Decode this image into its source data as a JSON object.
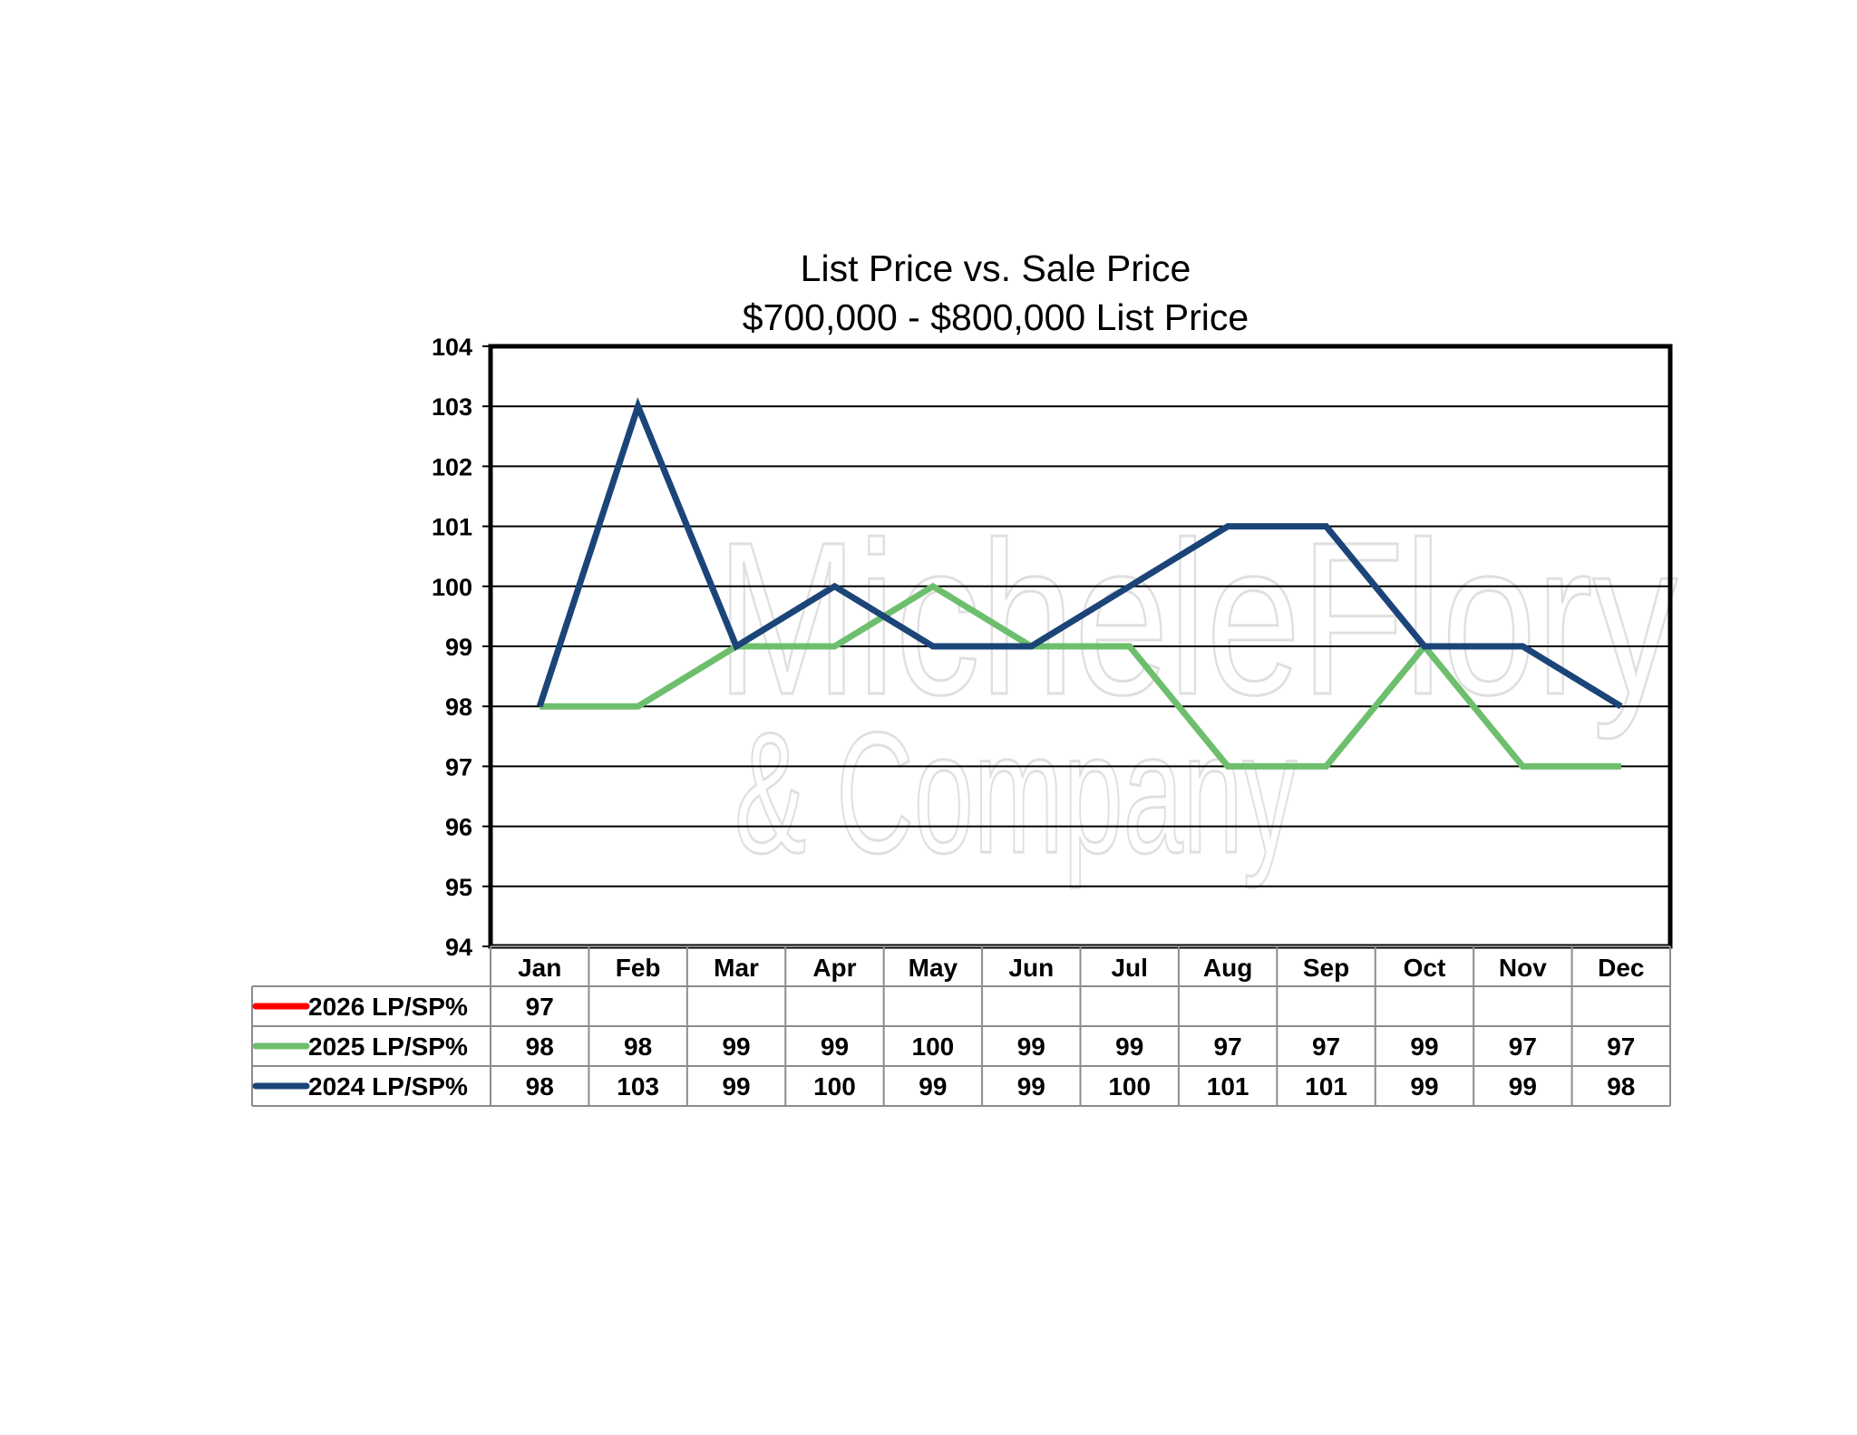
{
  "chart_data": {
    "type": "line",
    "title": "List Price vs. Sale Price",
    "subtitle": "$700,000 - $800,000 List Price",
    "categories": [
      "Jan",
      "Feb",
      "Mar",
      "Apr",
      "May",
      "Jun",
      "Jul",
      "Aug",
      "Sep",
      "Oct",
      "Nov",
      "Dec"
    ],
    "ylim": [
      94,
      104
    ],
    "yticks": [
      "94",
      "95",
      "96",
      "97",
      "98",
      "99",
      "100",
      "101",
      "102",
      "103",
      "104"
    ],
    "grid": true,
    "legend": "data-table-below",
    "series": [
      {
        "name": "2026 LP/SP%",
        "color": "#ff0000",
        "values": [
          97,
          null,
          null,
          null,
          null,
          null,
          null,
          null,
          null,
          null,
          null,
          null
        ]
      },
      {
        "name": "2025 LP/SP%",
        "color": "#6dbf6d",
        "values": [
          98,
          98,
          99,
          99,
          100,
          99,
          99,
          97,
          97,
          99,
          97,
          97
        ]
      },
      {
        "name": "2024 LP/SP%",
        "color": "#1b4478",
        "values": [
          98,
          103,
          99,
          100,
          99,
          99,
          100,
          101,
          101,
          99,
          99,
          98
        ]
      }
    ]
  },
  "watermark": {
    "line1": "MicheleFlory",
    "line2": "& Company"
  }
}
